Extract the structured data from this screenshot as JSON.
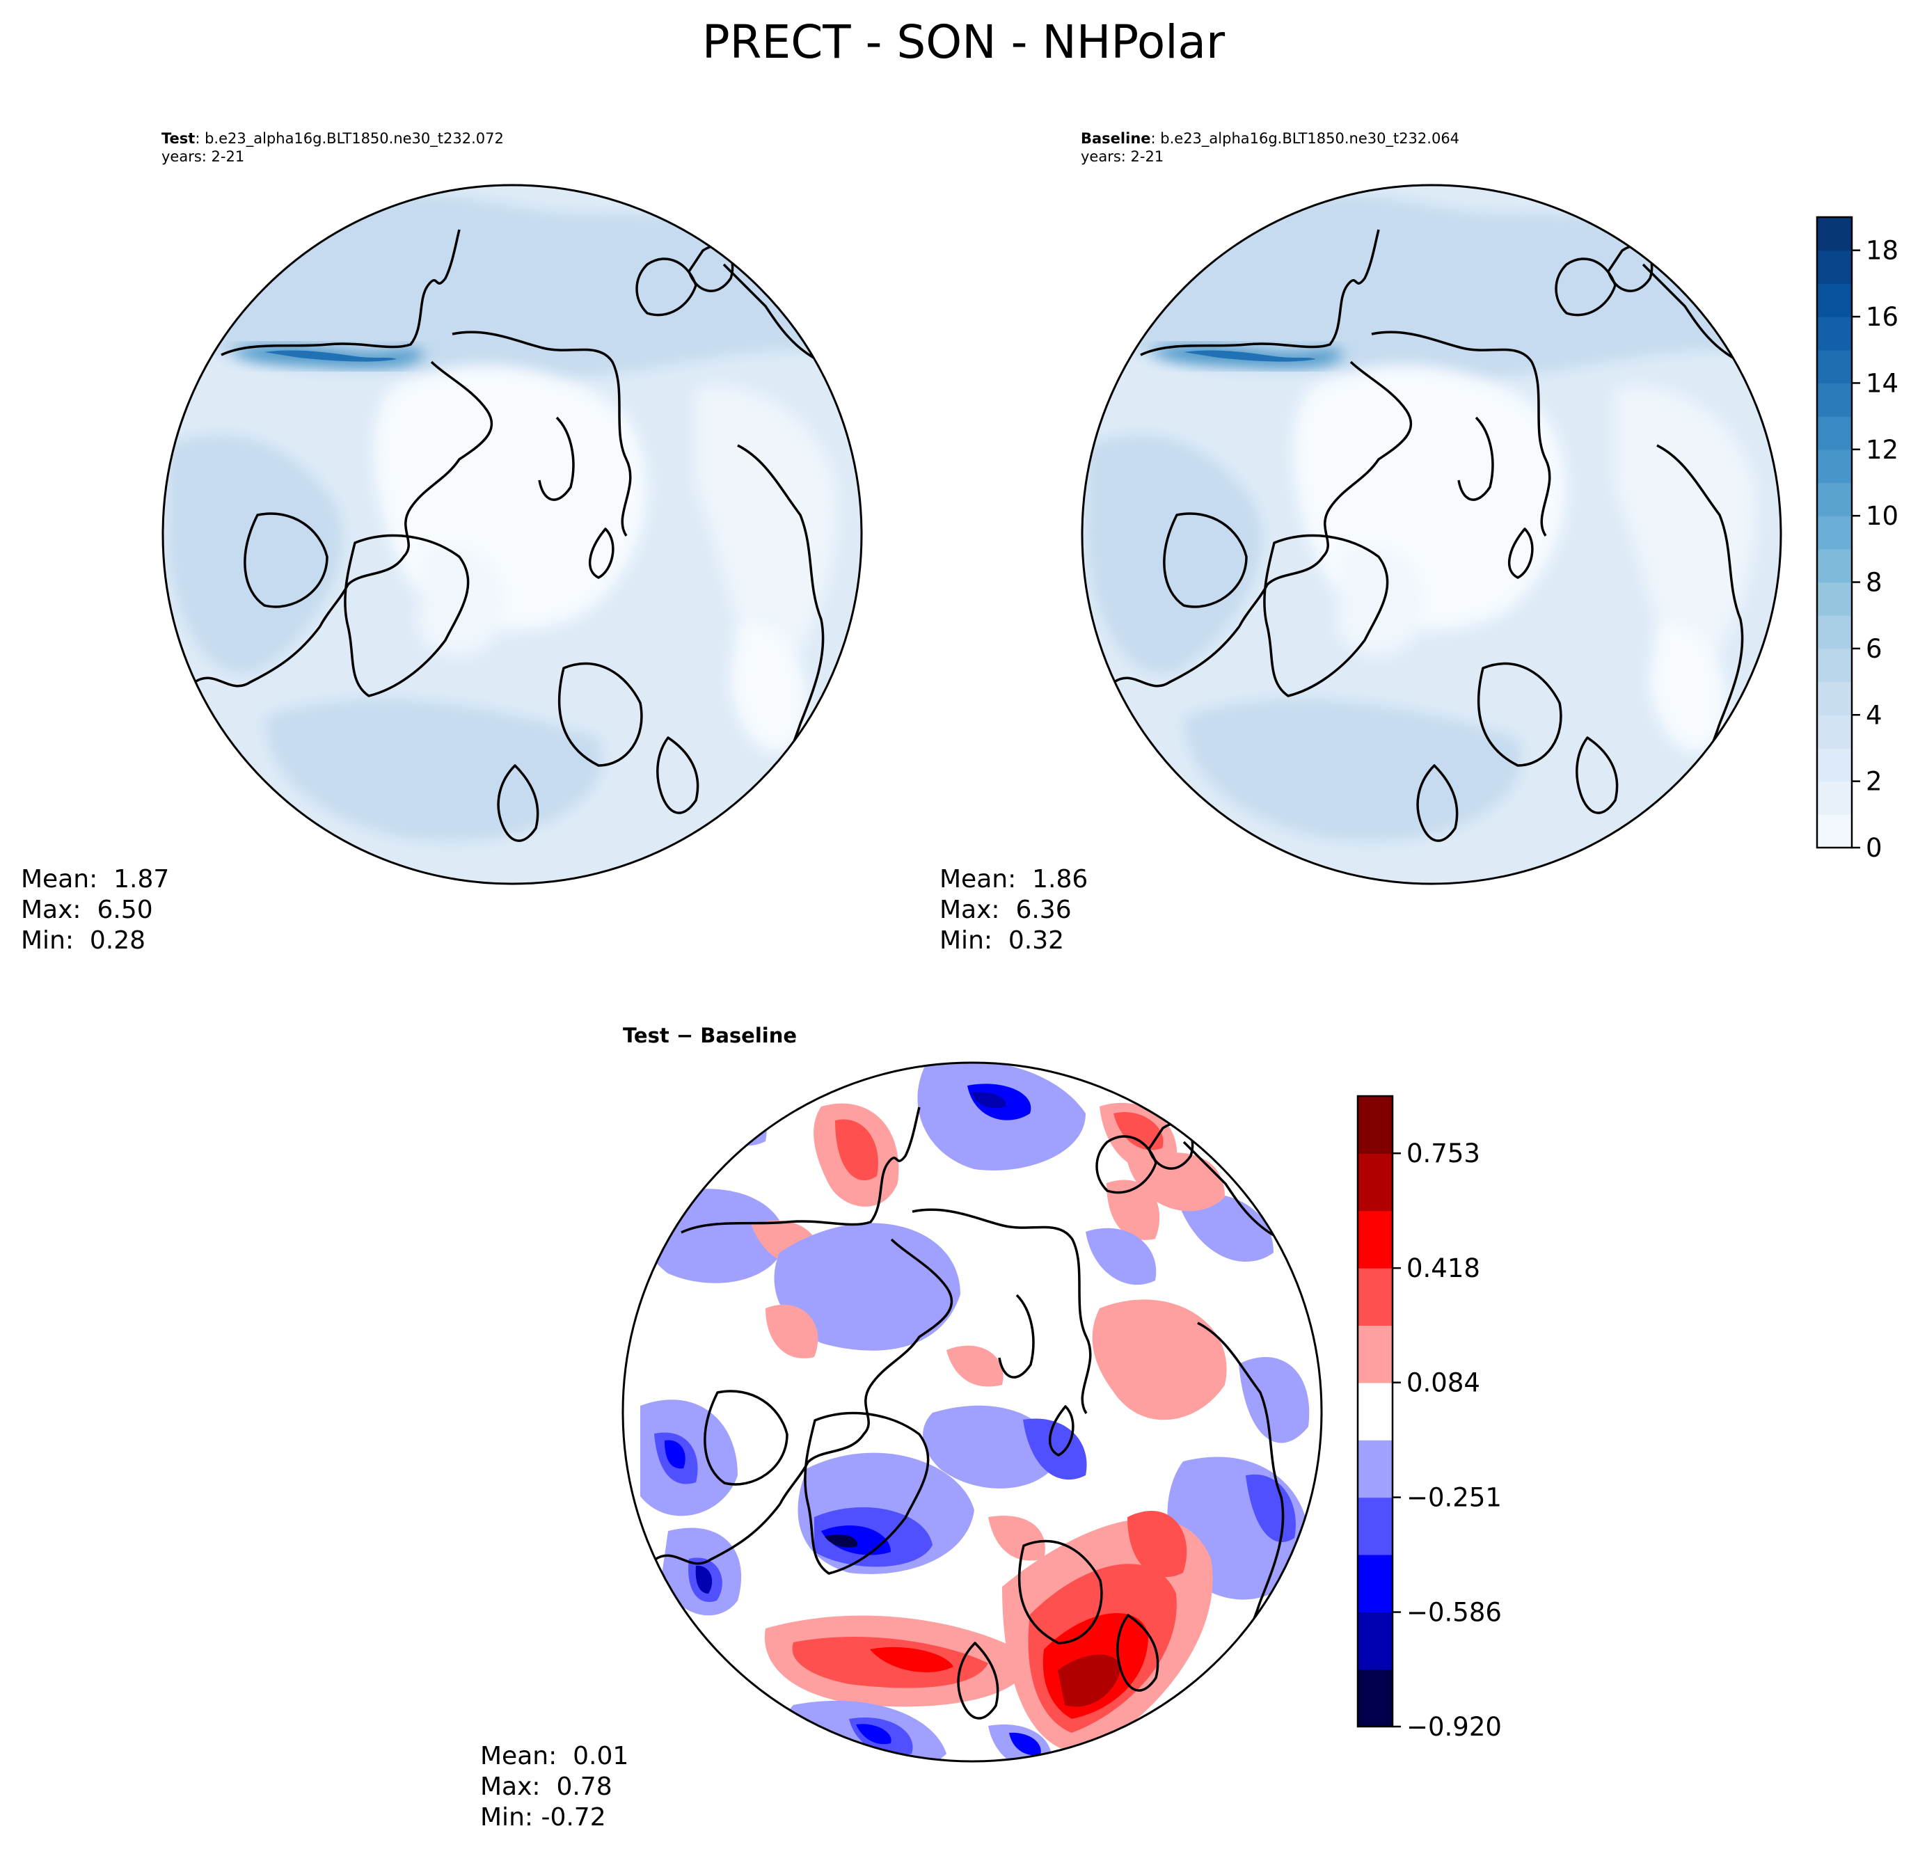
{
  "page": {
    "title": "PRECT - SON - NHPolar"
  },
  "panels": {
    "test": {
      "label": "Test",
      "case": ": b.e23_alpha16g.BLT1850.ne30_t232.072",
      "years": "years: 2-21",
      "mean": "Mean:  1.87",
      "max": "Max:  6.50",
      "min": "Min:  0.28"
    },
    "baseline": {
      "label": "Baseline",
      "case": ": b.e23_alpha16g.BLT1850.ne30_t232.064",
      "years": "years: 2-21",
      "mean": "Mean:  1.86",
      "max": "Max:  6.36",
      "min": "Min:  0.32"
    },
    "diff": {
      "title": "Test − Baseline",
      "mean": "Mean:  0.01",
      "max": "Max:  0.78",
      "min": "Min: -0.72"
    }
  },
  "colors": {
    "blues": [
      "#f7fbff",
      "#deebf7",
      "#c6dbef",
      "#9ecae1",
      "#6baed6",
      "#4292c6",
      "#2171b5",
      "#08519c",
      "#08306b"
    ],
    "diverging": [
      "#00004c",
      "#0000b0",
      "#0000ff",
      "#5050ff",
      "#a0a0ff",
      "#ffffff",
      "#ffa0a0",
      "#ff5050",
      "#ff0000",
      "#b00000",
      "#800000"
    ],
    "coast": "#000000"
  },
  "chart_data": [
    {
      "type": "heatmap",
      "name": "Test",
      "projection": "north polar stereographic",
      "variable": "PRECT",
      "season": "SON",
      "stats": {
        "mean": 1.87,
        "max": 6.5,
        "min": 0.28
      }
    },
    {
      "type": "heatmap",
      "name": "Baseline",
      "projection": "north polar stereographic",
      "variable": "PRECT",
      "season": "SON",
      "stats": {
        "mean": 1.86,
        "max": 6.36,
        "min": 0.32
      },
      "colorbar": {
        "range": [
          0,
          19
        ],
        "ticks": [
          0,
          2,
          4,
          6,
          8,
          10,
          12,
          14,
          16,
          18
        ],
        "tick_labels": [
          "0",
          "2",
          "4",
          "6",
          "8",
          "10",
          "12",
          "14",
          "16",
          "18"
        ],
        "levels": 19
      }
    },
    {
      "type": "heatmap",
      "name": "Test − Baseline",
      "projection": "north polar stereographic",
      "stats": {
        "mean": 0.01,
        "max": 0.78,
        "min": -0.72
      },
      "colorbar": {
        "range": [
          -0.92,
          0.92
        ],
        "ticks": [
          -0.92,
          -0.586,
          -0.251,
          0.084,
          0.418,
          0.753
        ],
        "tick_labels": [
          "−0.920",
          "−0.586",
          "−0.251",
          "0.084",
          "0.418",
          "0.753"
        ],
        "levels": 11
      }
    }
  ]
}
